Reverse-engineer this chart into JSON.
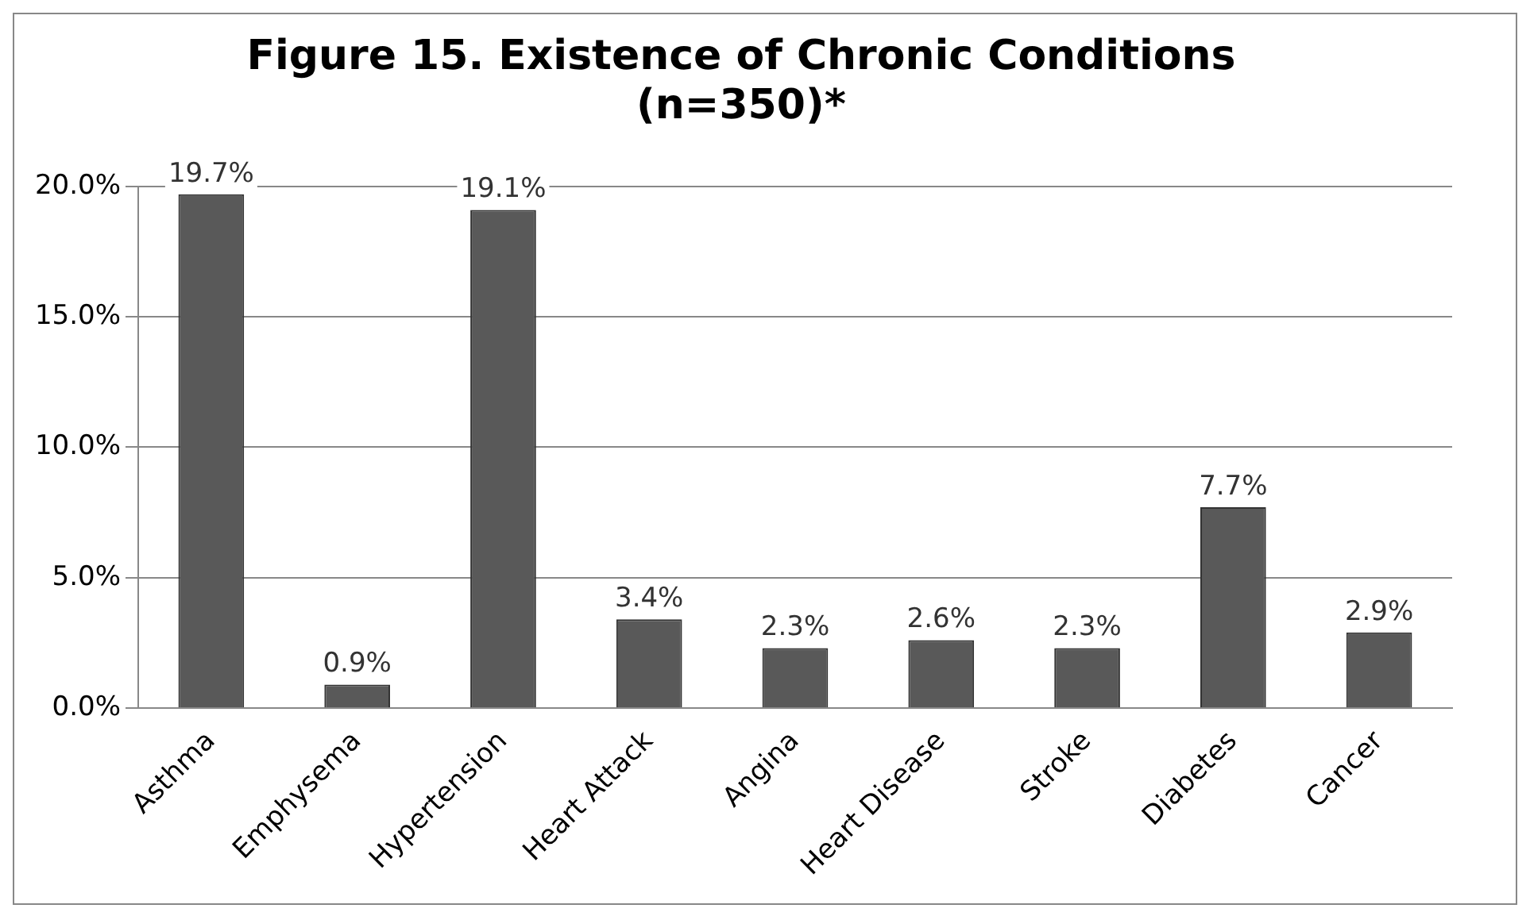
{
  "chart_data": {
    "type": "bar",
    "title": [
      "Figure 15. Existence of Chronic Conditions",
      "(n=350)*"
    ],
    "categories": [
      "Asthma",
      "Emphysema",
      "Hypertension",
      "Heart Attack",
      "Angina",
      "Heart Disease",
      "Stroke",
      "Diabetes",
      "Cancer"
    ],
    "values": [
      19.7,
      0.9,
      19.1,
      3.4,
      2.3,
      2.6,
      2.3,
      7.7,
      2.9
    ],
    "value_labels": [
      "19.7%",
      "0.9%",
      "19.1%",
      "3.4%",
      "2.3%",
      "2.6%",
      "2.3%",
      "7.7%",
      "2.9%"
    ],
    "color": "#595959",
    "ylim": [
      0,
      20
    ],
    "yticks": [
      {
        "value": 0,
        "label": "0.0%"
      },
      {
        "value": 5,
        "label": "5.0%"
      },
      {
        "value": 10,
        "label": "10.0%"
      },
      {
        "value": 15,
        "label": "15.0%"
      },
      {
        "value": 20,
        "label": "20.0%"
      }
    ],
    "grid": "y"
  }
}
